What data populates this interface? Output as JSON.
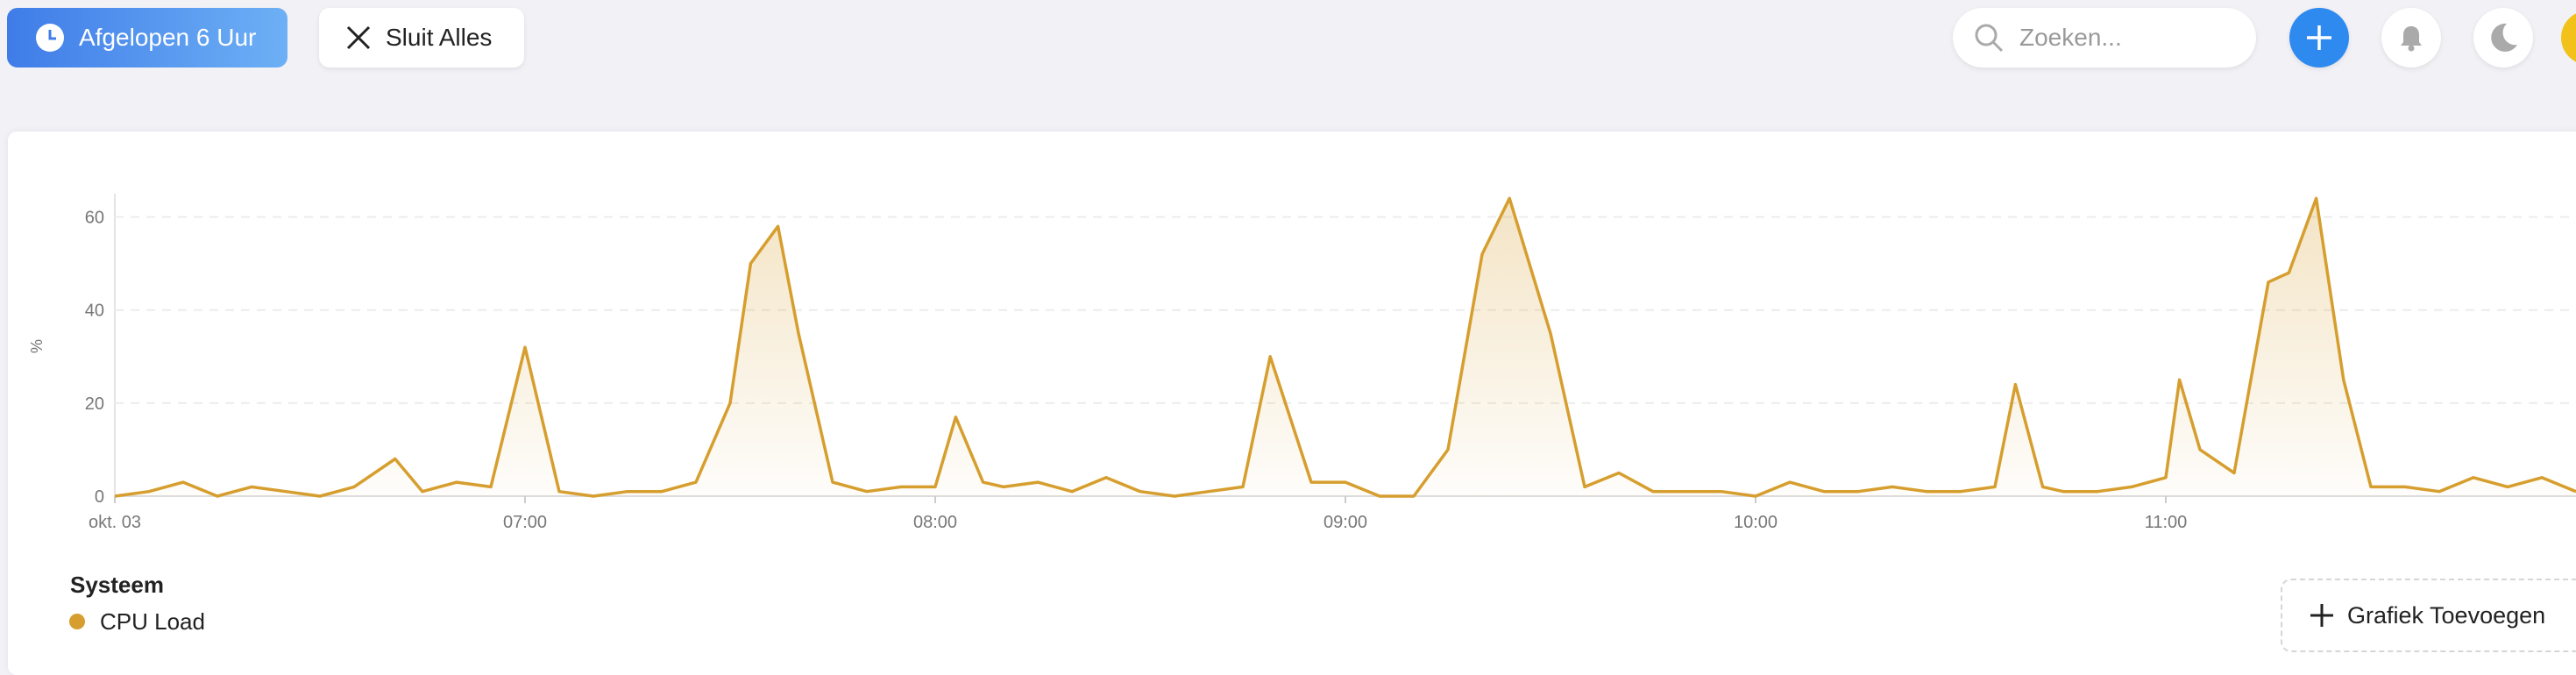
{
  "toolbar": {
    "range_button": "Afgelopen 6 Uur",
    "close_all": "Sluit Alles",
    "search_placeholder": "Zoeken..."
  },
  "chart_data": {
    "type": "line",
    "y_label": "%",
    "x": [
      "06:00",
      "06:05",
      "06:10",
      "06:15",
      "06:20",
      "06:25",
      "06:30",
      "06:35",
      "06:41",
      "06:45",
      "06:50",
      "06:55",
      "07:00",
      "07:05",
      "07:10",
      "07:15",
      "07:20",
      "07:25",
      "07:30",
      "07:33",
      "07:37",
      "07:40",
      "07:45",
      "07:50",
      "07:55",
      "08:00",
      "08:03",
      "08:07",
      "08:10",
      "08:15",
      "08:20",
      "08:25",
      "08:30",
      "08:35",
      "08:40",
      "08:45",
      "08:49",
      "08:55",
      "09:00",
      "09:05",
      "09:10",
      "09:15",
      "09:20",
      "09:24",
      "09:30",
      "09:35",
      "09:40",
      "09:45",
      "09:50",
      "09:55",
      "10:00",
      "10:05",
      "10:10",
      "10:15",
      "10:20",
      "10:25",
      "10:30",
      "10:35",
      "10:38",
      "10:42",
      "10:45",
      "10:50",
      "10:55",
      "11:00",
      "11:02",
      "11:05",
      "11:10",
      "11:15",
      "11:18",
      "11:22",
      "11:26",
      "11:30",
      "11:35",
      "11:40",
      "11:45",
      "11:50",
      "11:55",
      "12:00"
    ],
    "series": [
      {
        "name": "CPU Load",
        "color": "#d69e2e",
        "values": [
          0,
          1,
          3,
          0,
          2,
          1,
          0,
          2,
          8,
          1,
          3,
          2,
          32,
          1,
          0,
          1,
          1,
          3,
          20,
          50,
          58,
          35,
          3,
          1,
          2,
          2,
          17,
          3,
          2,
          3,
          1,
          4,
          1,
          0,
          1,
          2,
          30,
          3,
          3,
          0,
          0,
          10,
          52,
          64,
          35,
          2,
          5,
          1,
          1,
          1,
          0,
          3,
          1,
          1,
          2,
          1,
          1,
          2,
          24,
          2,
          1,
          1,
          2,
          4,
          25,
          10,
          5,
          46,
          48,
          64,
          25,
          2,
          2,
          1,
          4,
          2,
          4,
          1
        ]
      }
    ],
    "xlim": [
      "06:00",
      "12:00"
    ],
    "xticks": [
      {
        "value": "06:00",
        "label": "okt. 03"
      },
      "07:00",
      "08:00",
      "09:00",
      "10:00",
      "11:00"
    ],
    "ylim": [
      0,
      65
    ],
    "yticks": [
      0,
      20,
      40,
      60
    ],
    "grid": true,
    "legend_title": "Systeem"
  },
  "add_chart_button": "Grafiek Toevoegen"
}
